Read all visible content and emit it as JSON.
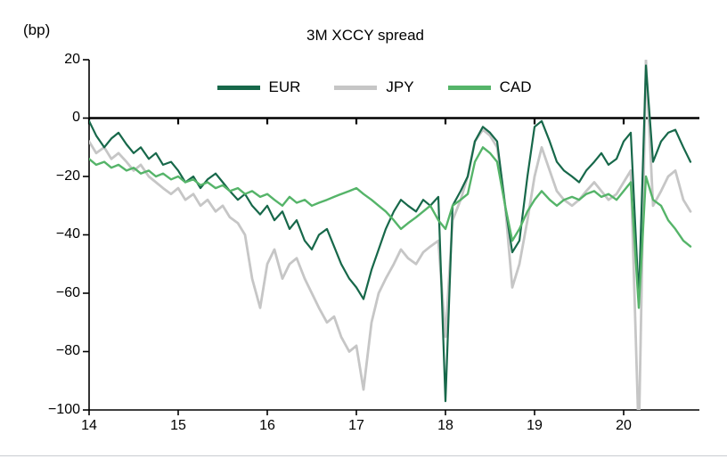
{
  "header": {
    "unit_label": "(bp)",
    "title": "3M XCCY spread"
  },
  "chart_data": {
    "type": "line",
    "title": "3M XCCY spread",
    "ylabel": "(bp)",
    "xlabel": "",
    "xlim": [
      14,
      20.85
    ],
    "ylim": [
      -100,
      20
    ],
    "grid": false,
    "legend_position": "top",
    "y_ticks": [
      20,
      0,
      -20,
      -40,
      -60,
      -80,
      -100
    ],
    "y_tick_labels": [
      "20",
      "0",
      "−20",
      "−40",
      "−60",
      "−80",
      "−100"
    ],
    "x_ticks": [
      14,
      15,
      16,
      17,
      18,
      19,
      20
    ],
    "x_tick_labels": [
      "14",
      "15",
      "16",
      "17",
      "18",
      "19",
      "20"
    ],
    "x": [
      14.0,
      14.08,
      14.17,
      14.25,
      14.33,
      14.42,
      14.5,
      14.58,
      14.67,
      14.75,
      14.83,
      14.92,
      15.0,
      15.08,
      15.17,
      15.25,
      15.33,
      15.42,
      15.5,
      15.58,
      15.67,
      15.75,
      15.83,
      15.92,
      16.0,
      16.08,
      16.17,
      16.25,
      16.33,
      16.42,
      16.5,
      16.58,
      16.67,
      16.75,
      16.83,
      16.92,
      17.0,
      17.08,
      17.17,
      17.25,
      17.33,
      17.42,
      17.5,
      17.58,
      17.67,
      17.75,
      17.83,
      17.92,
      18.0,
      18.08,
      18.17,
      18.25,
      18.33,
      18.42,
      18.5,
      18.58,
      18.67,
      18.75,
      18.83,
      18.92,
      19.0,
      19.08,
      19.17,
      19.25,
      19.33,
      19.42,
      19.5,
      19.58,
      19.67,
      19.75,
      19.83,
      19.92,
      20.0,
      20.08,
      20.17,
      20.25,
      20.33,
      20.42,
      20.5,
      20.58,
      20.67,
      20.75
    ],
    "series": [
      {
        "name": "EUR",
        "color": "#17684A",
        "stroke_width": 2.2,
        "values": [
          -1,
          -6,
          -10,
          -7,
          -5,
          -9,
          -12,
          -10,
          -14,
          -12,
          -16,
          -15,
          -18,
          -22,
          -20,
          -24,
          -21,
          -19,
          -22,
          -25,
          -28,
          -26,
          -30,
          -33,
          -30,
          -35,
          -32,
          -38,
          -35,
          -42,
          -45,
          -40,
          -38,
          -44,
          -50,
          -55,
          -58,
          -62,
          -52,
          -45,
          -38,
          -32,
          -28,
          -30,
          -32,
          -28,
          -30,
          -27,
          -97,
          -30,
          -25,
          -20,
          -8,
          -3,
          -5,
          -8,
          -30,
          -46,
          -42,
          -20,
          -3,
          -1,
          -8,
          -15,
          -18,
          -20,
          -22,
          -18,
          -15,
          -12,
          -16,
          -14,
          -8,
          -5,
          -62,
          18,
          -15,
          -8,
          -5,
          -4,
          -10,
          -15
        ]
      },
      {
        "name": "JPY",
        "color": "#C6C6C6",
        "stroke_width": 2.8,
        "values": [
          -8,
          -12,
          -10,
          -14,
          -12,
          -15,
          -18,
          -16,
          -20,
          -22,
          -24,
          -26,
          -24,
          -28,
          -26,
          -30,
          -28,
          -32,
          -30,
          -34,
          -36,
          -40,
          -55,
          -65,
          -50,
          -45,
          -55,
          -50,
          -48,
          -55,
          -60,
          -65,
          -70,
          -68,
          -75,
          -80,
          -78,
          -93,
          -70,
          -60,
          -55,
          -50,
          -45,
          -48,
          -50,
          -46,
          -44,
          -42,
          -75,
          -35,
          -28,
          -20,
          -8,
          -4,
          -6,
          -10,
          -30,
          -58,
          -50,
          -35,
          -20,
          -10,
          -18,
          -25,
          -28,
          -30,
          -28,
          -25,
          -22,
          -25,
          -28,
          -26,
          -22,
          -18,
          -110,
          20,
          -30,
          -25,
          -20,
          -18,
          -28,
          -32
        ]
      },
      {
        "name": "CAD",
        "color": "#55B469",
        "stroke_width": 2.4,
        "values": [
          -14,
          -16,
          -15,
          -17,
          -16,
          -18,
          -17,
          -19,
          -18,
          -20,
          -19,
          -21,
          -20,
          -22,
          -21,
          -23,
          -22,
          -24,
          -23,
          -25,
          -24,
          -26,
          -25,
          -27,
          -26,
          -28,
          -30,
          -27,
          -29,
          -28,
          -30,
          -29,
          -28,
          -27,
          -26,
          -25,
          -24,
          -26,
          -28,
          -30,
          -32,
          -35,
          -38,
          -36,
          -34,
          -32,
          -30,
          -35,
          -38,
          -30,
          -28,
          -26,
          -15,
          -10,
          -12,
          -15,
          -30,
          -42,
          -38,
          -32,
          -28,
          -25,
          -28,
          -30,
          -28,
          -27,
          -28,
          -26,
          -25,
          -27,
          -26,
          -28,
          -25,
          -22,
          -65,
          -20,
          -28,
          -30,
          -35,
          -38,
          -42,
          -44
        ]
      }
    ]
  }
}
